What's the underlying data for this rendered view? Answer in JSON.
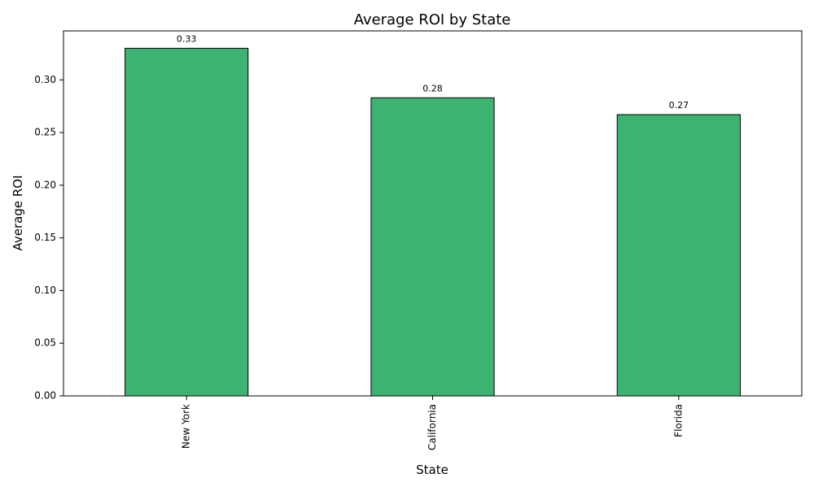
{
  "chart_data": {
    "type": "bar",
    "title": "Average ROI by State",
    "xlabel": "State",
    "ylabel": "Average ROI",
    "categories": [
      "New York",
      "California",
      "Florida"
    ],
    "values": [
      0.33,
      0.283,
      0.267
    ],
    "value_labels": [
      "0.33",
      "0.28",
      "0.27"
    ],
    "ylim": [
      0,
      0.3465
    ],
    "yticks": [
      0.0,
      0.05,
      0.1,
      0.15,
      0.2,
      0.25,
      0.3
    ],
    "ytick_labels": [
      "0.00",
      "0.05",
      "0.10",
      "0.15",
      "0.20",
      "0.25",
      "0.30"
    ],
    "bar_color": "#3cb371",
    "bar_edge_color": "#000000",
    "grid": false,
    "legend": "none",
    "xtick_rotation": "vertical"
  }
}
